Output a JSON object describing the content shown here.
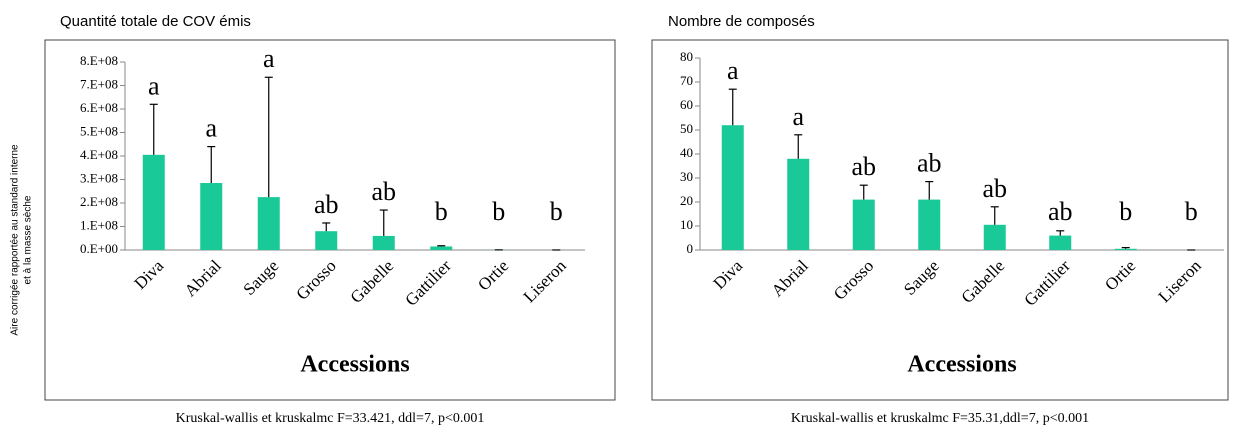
{
  "chart_data": [
    {
      "type": "bar",
      "title": "Quantité totale de COV émis",
      "ylabel": [
        "Aire corrigée rapportée au standard interne",
        "et à la masse sèche"
      ],
      "xlabel": "Accessions",
      "categories": [
        "Diva",
        "Abrial",
        "Sauge",
        "Grosso",
        "Gabelle",
        "Gattilier",
        "Ortie",
        "Liseron"
      ],
      "values": [
        405000000,
        285000000,
        225000000,
        80000000,
        60000000,
        15000000,
        500000,
        100000
      ],
      "errors": [
        215000000,
        155000000,
        510000000,
        35000000,
        110000000,
        3000000,
        0,
        0
      ],
      "annotations": [
        "a",
        "a",
        "a",
        "ab",
        "ab",
        "b",
        "b",
        "b"
      ],
      "footnote": "Kruskal-wallis et kruskalmc F=33.421, ddl=7, p<0.001",
      "color": "#19c997",
      "ylim": [
        0,
        800000000
      ],
      "yticks": [
        {
          "value": 0,
          "label": "0.E+00"
        },
        {
          "value": 100000000,
          "label": "1.E+08"
        },
        {
          "value": 200000000,
          "label": "2.E+08"
        },
        {
          "value": 300000000,
          "label": "3.E+08"
        },
        {
          "value": 400000000,
          "label": "4.E+08"
        },
        {
          "value": 500000000,
          "label": "5.E+08"
        },
        {
          "value": 600000000,
          "label": "6.E+08"
        },
        {
          "value": 700000000,
          "label": "7.E+08"
        },
        {
          "value": 800000000,
          "label": "8.E+08"
        }
      ]
    },
    {
      "type": "bar",
      "title": "Nombre de composés",
      "xlabel": "Accessions",
      "categories": [
        "Diva",
        "Abrial",
        "Grosso",
        "Sauge",
        "Gabelle",
        "Gattilier",
        "Ortie",
        "Liseron"
      ],
      "values": [
        52,
        38,
        21,
        21,
        10.5,
        6,
        0.5,
        0
      ],
      "errors": [
        15,
        10,
        6,
        7.5,
        7.5,
        2,
        0.5,
        0
      ],
      "annotations": [
        "a",
        "a",
        "ab",
        "ab",
        "ab",
        "ab",
        "b",
        "b"
      ],
      "footnote": "Kruskal-wallis et kruskalmc  F=35.31,ddl=7, p<0.001",
      "color": "#19c997",
      "ylim": [
        0,
        80
      ],
      "yticks": [
        0,
        10,
        20,
        30,
        40,
        50,
        60,
        70,
        80
      ]
    }
  ]
}
